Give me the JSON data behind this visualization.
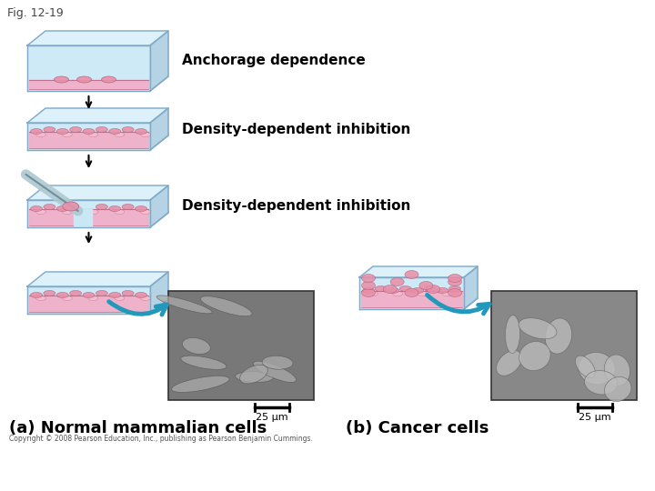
{
  "fig_label": "Fig. 12-19",
  "title_a": "(a) Normal mammalian cells",
  "title_b": "(b) Cancer cells",
  "label_anchorage": "Anchorage dependence",
  "label_density1": "Density-dependent inhibition",
  "label_density2": "Density-dependent inhibition",
  "scale_bar_label": "25 μm",
  "copyright": "Copyright © 2008 Pearson Education, Inc., publishing as Pearson Benjamin Cummings.",
  "bg_color": "#ffffff",
  "dish_fill": "#c8e8f5",
  "dish_top_fill": "#daf0fa",
  "dish_right_fill": "#a8cce0",
  "dish_edge": "#80aac8",
  "cell_layer_fill": "#f0b0c8",
  "cell_layer_edge": "#c07090",
  "cell_blob_fill": "#e890a8",
  "cell_blob_edge": "#b06080",
  "arrow_color": "#2299bb",
  "text_color": "#000000",
  "fig_label_color": "#444444",
  "sem_bg_normal": "#888888",
  "sem_bg_cancer": "#909090",
  "scale_bar_color": "#000000"
}
